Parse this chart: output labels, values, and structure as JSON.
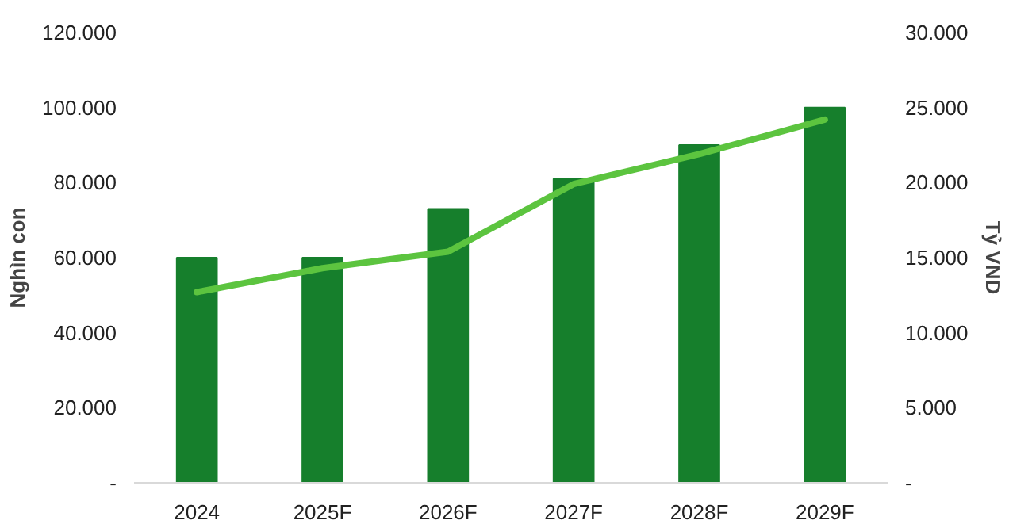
{
  "chart_data": {
    "type": "bar",
    "ylabel": "Nghìn con",
    "y2label": "Tỷ VND",
    "categories": [
      "2024",
      "2025F",
      "2026F",
      "2027F",
      "2028F",
      "2029F"
    ],
    "series": [
      {
        "color": "#167f2c",
        "values": [
          60000,
          60000,
          73000,
          81000,
          90000,
          100000
        ]
      },
      {
        "type": "line",
        "axis": "y2",
        "color": "#5cc43f",
        "values": [
          12700,
          14300,
          15400,
          19900,
          21900,
          24200
        ]
      }
    ],
    "ylim": [
      0,
      120000
    ],
    "yticks": [
      {
        "value": 0,
        "label": "-"
      },
      {
        "value": 20000,
        "label": "20.000"
      },
      {
        "value": 40000,
        "label": "40.000"
      },
      {
        "value": 60000,
        "label": "60.000"
      },
      {
        "value": 80000,
        "label": "80.000"
      },
      {
        "value": 100000,
        "label": "100.000"
      },
      {
        "value": 120000,
        "label": "120.000"
      }
    ],
    "y2lim": [
      0,
      30000
    ],
    "y2ticks": [
      {
        "value": 0,
        "label": "-"
      },
      {
        "value": 5000,
        "label": "5.000"
      },
      {
        "value": 10000,
        "label": "10.000"
      },
      {
        "value": 15000,
        "label": "15.000"
      },
      {
        "value": 20000,
        "label": "20.000"
      },
      {
        "value": 25000,
        "label": "25.000"
      },
      {
        "value": 30000,
        "label": "30.000"
      }
    ],
    "grid": false,
    "marker": "none",
    "line_style": "solid"
  }
}
